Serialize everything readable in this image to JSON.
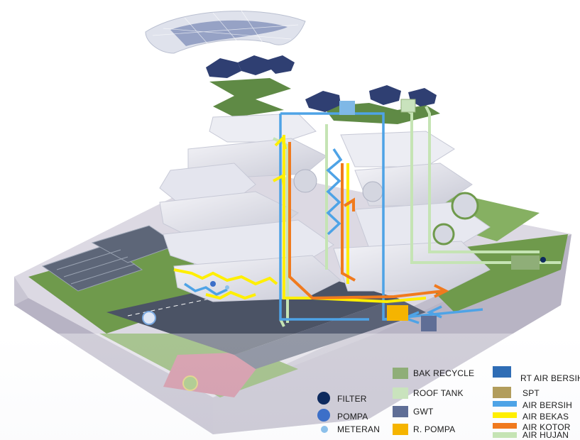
{
  "legend": {
    "markers": [
      {
        "label": "FILTER",
        "color": "#0d2a5e",
        "icon": "filter-dot-icon"
      },
      {
        "label": "POMPA",
        "color": "#3c6fc8",
        "icon": "pump-dot-icon"
      },
      {
        "label": "METERAN",
        "color": "#8cc0ea",
        "icon": "meter-dot-icon"
      }
    ],
    "areas": [
      {
        "label": "BAK RECYCLE",
        "color": "#8fae78"
      },
      {
        "label": "ROOF TANK",
        "color": "#c9e3bd"
      },
      {
        "label": "GWT",
        "color": "#5f6e96"
      },
      {
        "label": "R. POMPA",
        "color": "#f5b400"
      },
      {
        "label": "RT AIR BERSIH",
        "color": "#2f6db5"
      },
      {
        "label": "SPT",
        "color": "#b29d5c"
      }
    ],
    "lines": [
      {
        "label": "AIR BERSIH",
        "color": "#4ea3e6"
      },
      {
        "label": "AIR BEKAS",
        "color": "#ffef00"
      },
      {
        "label": "AIR KOTOR",
        "color": "#f07a1e"
      },
      {
        "label": "AIR HUJAN",
        "color": "#c5e4b4"
      }
    ]
  }
}
